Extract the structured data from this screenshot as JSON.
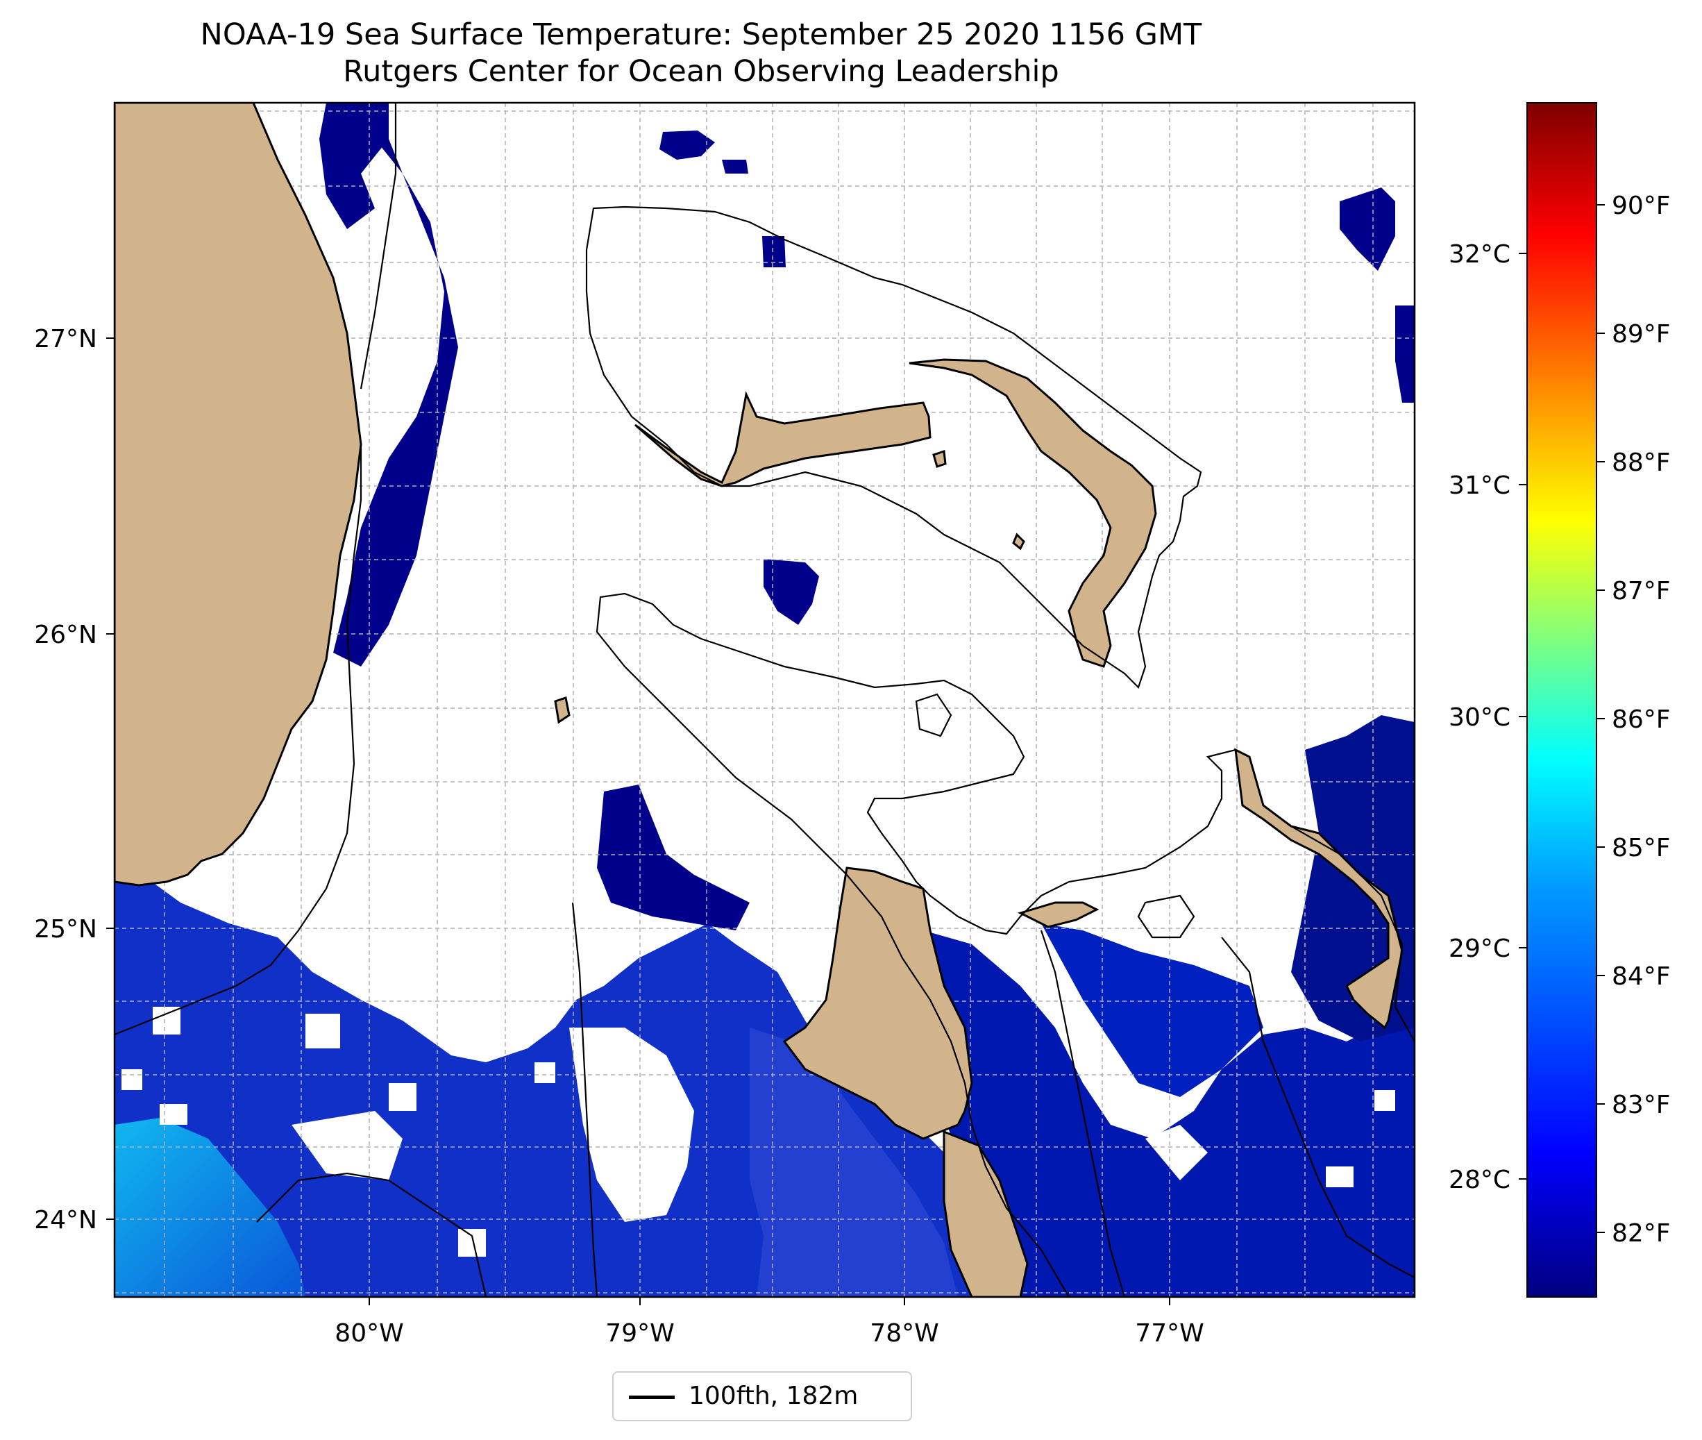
{
  "title": {
    "line1": "NOAA-19 Sea Surface Temperature: September 25 2020 1156 GMT",
    "line2": "Rutgers Center for Ocean Observing Leadership"
  },
  "axes": {
    "x_ticks": [
      "80°W",
      "79°W",
      "78°W",
      "77°W"
    ],
    "y_ticks": [
      "27°N",
      "26°N",
      "25°N",
      "24°N"
    ]
  },
  "colorbar": {
    "celsius_ticks": [
      "32°C",
      "31°C",
      "30°C",
      "29°C",
      "28°C"
    ],
    "fahrenheit_ticks": [
      "90°F",
      "89°F",
      "88°F",
      "87°F",
      "86°F",
      "85°F",
      "84°F",
      "83°F",
      "82°F"
    ],
    "colormap": "jet",
    "colors": [
      "#00007f",
      "#0000ff",
      "#0080ff",
      "#00ffff",
      "#7fff7f",
      "#ffff00",
      "#ff8000",
      "#ff0000",
      "#7f0000"
    ]
  },
  "legend": {
    "label": "100fth, 182m"
  },
  "map_colors": {
    "land": "#d2b48c",
    "ocean_sst_main": "#00008b",
    "coastline": "#000000",
    "grid": "#b0b0b0"
  }
}
